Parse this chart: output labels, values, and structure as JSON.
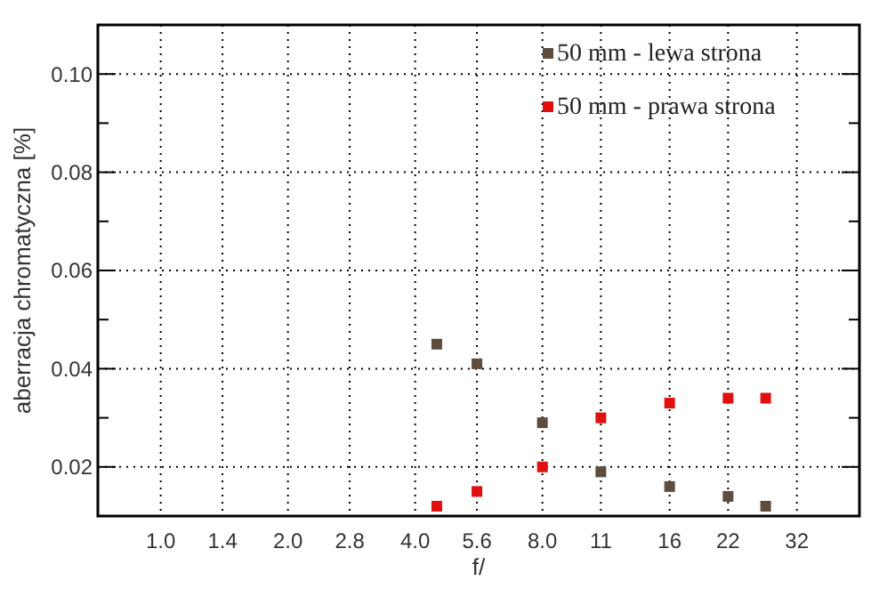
{
  "chart_data": {
    "type": "scatter",
    "xlabel": "f/",
    "ylabel": "aberracja chromatyczna [%]",
    "x": [
      4.5,
      5.6,
      8,
      11,
      16,
      22,
      27
    ],
    "series": [
      {
        "name": "50 mm - lewa strona",
        "color": "#5e4c3c",
        "values": [
          0.045,
          0.041,
          0.029,
          0.019,
          0.016,
          0.014,
          0.012
        ]
      },
      {
        "name": "50 mm - prawa strona",
        "color": "#e01010",
        "values": [
          0.012,
          0.015,
          0.02,
          0.03,
          0.033,
          0.034,
          0.034
        ]
      }
    ],
    "log": "x",
    "xlim": [
      0.71,
      45
    ],
    "xticks": [
      {
        "value": 1,
        "label": "1.0"
      },
      1.4,
      {
        "value": 2,
        "label": "2.0"
      },
      2.8,
      {
        "value": 4,
        "label": "4.0"
      },
      5.6,
      {
        "value": 8,
        "label": "8.0"
      },
      11,
      16,
      22,
      32
    ],
    "ylim": [
      0.01,
      0.11
    ],
    "yticks": [
      {
        "value": 0.02,
        "label": "0.02"
      },
      {
        "value": 0.03,
        "label": null
      },
      {
        "value": 0.04,
        "label": "0.04"
      },
      {
        "value": 0.05,
        "label": null
      },
      {
        "value": 0.06,
        "label": "0.06"
      },
      {
        "value": 0.07,
        "label": null
      },
      {
        "value": 0.08,
        "label": "0.08"
      },
      {
        "value": 0.09,
        "label": null
      },
      {
        "value": 0.1,
        "label": "0.10"
      }
    ],
    "grid": true,
    "legend": "top right",
    "marker": "square"
  }
}
